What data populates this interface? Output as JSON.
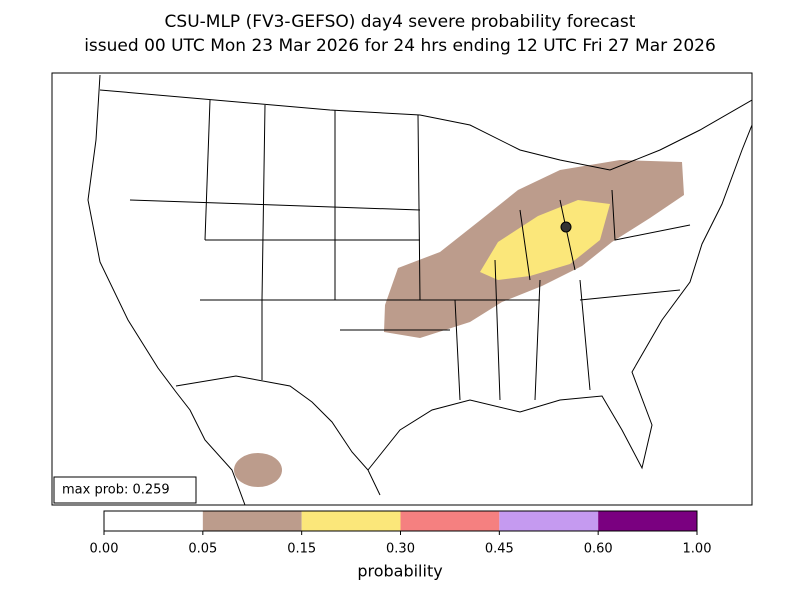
{
  "title_lines": [
    "CSU-MLP (FV3-GEFSO) day4 severe probability forecast",
    "issued 00 UTC Mon 23 Mar 2026 for 24 hrs ending 12 UTC Fri 27 Mar 2026"
  ],
  "max_prob_text": "max prob: 0.259",
  "colorbar": {
    "label": "probability",
    "ticks": [
      {
        "value": 0,
        "label": "0.00"
      },
      {
        "value": 0.05,
        "label": "0.05"
      },
      {
        "value": 0.15,
        "label": "0.15"
      },
      {
        "value": 0.3,
        "label": "0.30"
      },
      {
        "value": 0.45,
        "label": "0.45"
      },
      {
        "value": 0.6,
        "label": "0.60"
      },
      {
        "value": 1,
        "label": "1.00"
      }
    ],
    "colors": [
      "#ffffff",
      "#bc9c8c",
      "#fbe77a",
      "#f58080",
      "#c59af0",
      "#7a0080"
    ]
  }
}
